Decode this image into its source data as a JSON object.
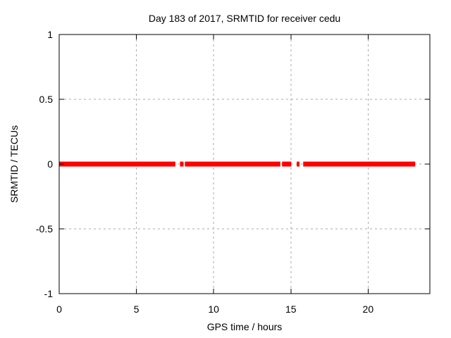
{
  "colors": {
    "background": "#ffffff",
    "line": "#ff0000",
    "grid": "#aaaaaa",
    "border": "#000000",
    "text": "#000000"
  },
  "chart_data": {
    "type": "line",
    "title": "Day 183 of 2017, SRMTID for receiver cedu",
    "xlabel": "GPS time / hours",
    "ylabel": "SRMTID / TECUs",
    "xlim": [
      0,
      24
    ],
    "ylim": [
      -1,
      1
    ],
    "xticks": [
      0,
      5,
      10,
      15,
      20
    ],
    "xtick_labels": [
      "0",
      "5",
      "10",
      "15",
      "20"
    ],
    "yticks": [
      1,
      0.5,
      0,
      -0.5,
      -1
    ],
    "ytick_labels": [
      "1",
      "0.5",
      "0",
      "-0.5",
      "-1"
    ],
    "grid": true,
    "legend": "none",
    "series": [
      {
        "name": "SRMTID",
        "color": "#ff0000",
        "y_value": 0,
        "line_thickness_px": 7,
        "segments_hours": [
          [
            0.0,
            7.52
          ],
          [
            7.82,
            8.05
          ],
          [
            8.14,
            14.32
          ],
          [
            14.43,
            15.03
          ],
          [
            15.38,
            15.56
          ],
          [
            15.8,
            23.05
          ]
        ]
      }
    ]
  }
}
